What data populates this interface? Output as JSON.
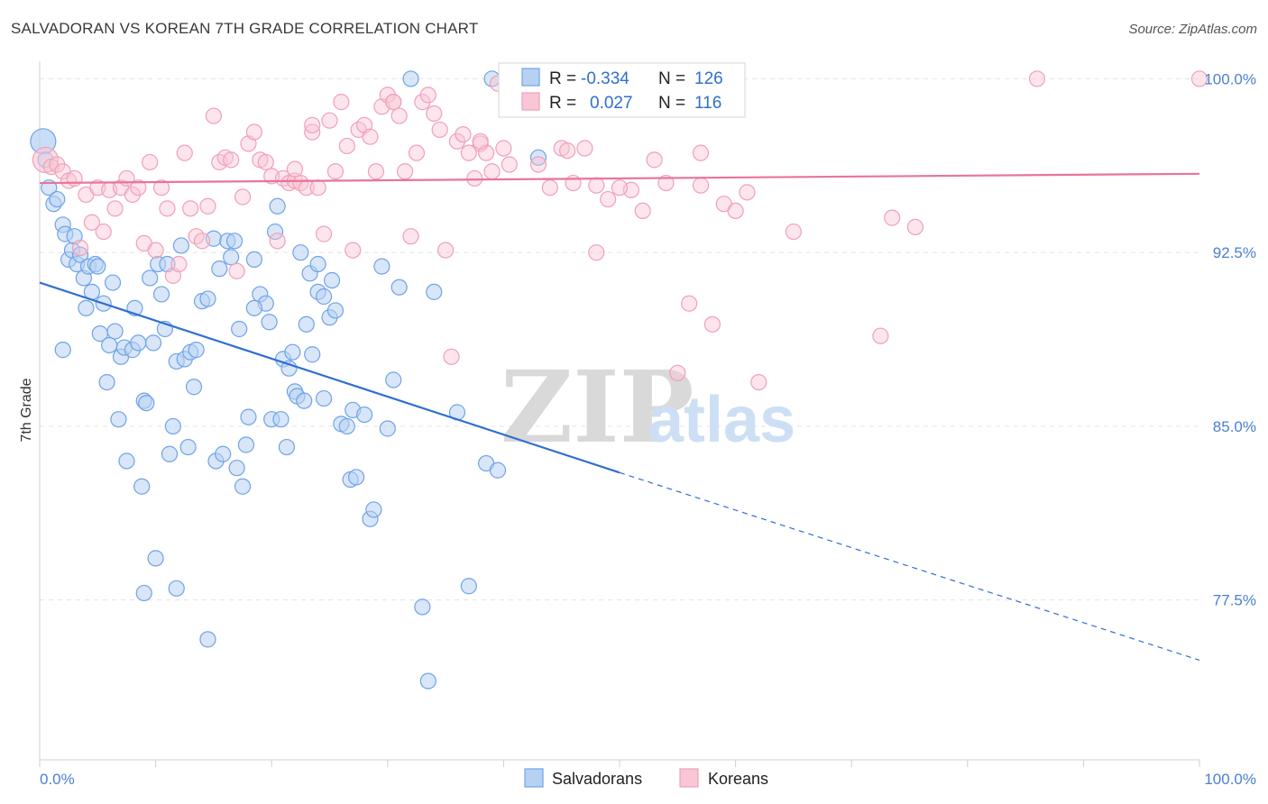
{
  "title": "SALVADORAN VS KOREAN 7TH GRADE CORRELATION CHART",
  "source": "Source: ZipAtlas.com",
  "watermark": {
    "zip": "ZIP",
    "atlas": "atlas"
  },
  "legend_top": {
    "rows": [
      {
        "r_label": "R =",
        "r_value": "-0.334",
        "n_label": "N =",
        "n_value": "126"
      },
      {
        "r_label": "R =",
        "r_value": "0.027",
        "n_label": "N =",
        "n_value": "116"
      }
    ]
  },
  "legend_bottom": [
    "Salvadorans",
    "Koreans"
  ],
  "colors": {
    "salvadorans": "#6fa3e8",
    "salvadorans_line": "#2f6fd0",
    "koreans": "#f0a0b8",
    "koreans_line": "#e8749a",
    "tick_text": "#4a7fd4"
  },
  "chart_data": {
    "type": "scatter",
    "title": "SALVADORAN VS KOREAN 7TH GRADE CORRELATION CHART",
    "xlabel": "",
    "ylabel": "7th Grade",
    "xlim": [
      0,
      100
    ],
    "ylim": [
      70.6,
      100.6
    ],
    "x_tick_labels": [
      "0.0%",
      "100.0%"
    ],
    "y_ticks": [
      77.5,
      85.0,
      92.5,
      100.0
    ],
    "y_tick_labels": [
      "77.5%",
      "85.0%",
      "92.5%",
      "100.0%"
    ],
    "grid": true,
    "legend_placement": "top-center",
    "series": [
      {
        "name": "Salvadorans",
        "r": -0.334,
        "n": 126,
        "trend": {
          "x0": 0,
          "y0": 91.2,
          "x1": 50,
          "y1": 83.0,
          "dashed_to_x": 100,
          "dashed_to_y": 74.9
        },
        "points": [
          [
            0.3,
            97.3
          ],
          [
            0.5,
            96.5
          ],
          [
            0.8,
            95.3
          ],
          [
            1.2,
            94.6
          ],
          [
            1.5,
            94.8
          ],
          [
            2.0,
            93.7
          ],
          [
            2.2,
            93.3
          ],
          [
            2.5,
            92.2
          ],
          [
            2.8,
            92.6
          ],
          [
            3.0,
            93.2
          ],
          [
            3.2,
            92.0
          ],
          [
            3.5,
            92.4
          ],
          [
            3.8,
            91.4
          ],
          [
            2.0,
            88.3
          ],
          [
            4.0,
            90.1
          ],
          [
            4.2,
            91.9
          ],
          [
            4.5,
            90.8
          ],
          [
            4.8,
            92.0
          ],
          [
            5.0,
            91.9
          ],
          [
            5.2,
            89.0
          ],
          [
            5.5,
            90.3
          ],
          [
            5.8,
            86.9
          ],
          [
            6.0,
            88.5
          ],
          [
            6.3,
            91.2
          ],
          [
            6.5,
            89.1
          ],
          [
            6.8,
            85.3
          ],
          [
            7.0,
            88.0
          ],
          [
            7.3,
            88.4
          ],
          [
            7.5,
            83.5
          ],
          [
            8.0,
            88.3
          ],
          [
            8.2,
            90.1
          ],
          [
            8.5,
            88.6
          ],
          [
            8.8,
            82.4
          ],
          [
            9.0,
            86.1
          ],
          [
            9.2,
            86.0
          ],
          [
            9.5,
            91.4
          ],
          [
            9.8,
            88.6
          ],
          [
            10.2,
            92.0
          ],
          [
            10.5,
            90.7
          ],
          [
            10.8,
            89.2
          ],
          [
            11.0,
            92.0
          ],
          [
            11.2,
            83.8
          ],
          [
            11.5,
            85.0
          ],
          [
            11.8,
            87.8
          ],
          [
            12.2,
            92.8
          ],
          [
            12.5,
            87.9
          ],
          [
            12.8,
            84.1
          ],
          [
            13.0,
            88.2
          ],
          [
            13.3,
            86.7
          ],
          [
            13.5,
            88.3
          ],
          [
            14.0,
            90.4
          ],
          [
            14.5,
            90.5
          ],
          [
            15.0,
            93.1
          ],
          [
            15.2,
            83.5
          ],
          [
            15.5,
            91.8
          ],
          [
            15.8,
            83.8
          ],
          [
            16.2,
            93.0
          ],
          [
            16.5,
            92.3
          ],
          [
            16.8,
            93.0
          ],
          [
            17.0,
            83.2
          ],
          [
            17.2,
            89.2
          ],
          [
            17.5,
            82.4
          ],
          [
            17.8,
            84.2
          ],
          [
            18.0,
            85.4
          ],
          [
            18.5,
            92.2
          ],
          [
            19.0,
            90.7
          ],
          [
            19.5,
            90.3
          ],
          [
            19.8,
            89.5
          ],
          [
            20.0,
            85.3
          ],
          [
            20.3,
            93.4
          ],
          [
            20.8,
            85.3
          ],
          [
            21.0,
            87.9
          ],
          [
            21.3,
            84.1
          ],
          [
            21.8,
            88.2
          ],
          [
            22.0,
            86.5
          ],
          [
            22.2,
            86.3
          ],
          [
            22.5,
            92.5
          ],
          [
            22.8,
            86.1
          ],
          [
            23.0,
            89.4
          ],
          [
            23.3,
            91.6
          ],
          [
            23.5,
            88.1
          ],
          [
            24.0,
            90.8
          ],
          [
            24.5,
            90.6
          ],
          [
            25.0,
            89.7
          ],
          [
            25.5,
            90.0
          ],
          [
            25.2,
            91.3
          ],
          [
            26.0,
            85.1
          ],
          [
            26.5,
            85.0
          ],
          [
            26.8,
            82.7
          ],
          [
            27.0,
            85.7
          ],
          [
            27.3,
            82.8
          ],
          [
            28.0,
            85.5
          ],
          [
            28.5,
            81.0
          ],
          [
            28.8,
            81.4
          ],
          [
            29.5,
            91.9
          ],
          [
            30.0,
            84.9
          ],
          [
            31.0,
            91.0
          ],
          [
            32.0,
            100.0
          ],
          [
            33.0,
            77.2
          ],
          [
            33.5,
            74.0
          ],
          [
            34.0,
            90.8
          ],
          [
            36.0,
            85.6
          ],
          [
            37.0,
            78.1
          ],
          [
            38.5,
            83.4
          ],
          [
            39.0,
            100.0
          ],
          [
            39.5,
            83.1
          ],
          [
            43.0,
            96.6
          ],
          [
            10.0,
            79.3
          ],
          [
            11.8,
            78.0
          ],
          [
            9.0,
            77.8
          ],
          [
            14.5,
            75.8
          ],
          [
            18.5,
            90.1
          ],
          [
            20.5,
            94.5
          ],
          [
            21.5,
            87.5
          ],
          [
            24.0,
            92.0
          ],
          [
            24.5,
            86.2
          ],
          [
            30.5,
            87.0
          ]
        ]
      },
      {
        "name": "Koreans",
        "r": 0.027,
        "n": 116,
        "trend": {
          "x0": 0,
          "y0": 95.5,
          "x1": 100,
          "y1": 95.9
        },
        "points": [
          [
            0.5,
            96.5
          ],
          [
            1.0,
            96.2
          ],
          [
            1.5,
            96.3
          ],
          [
            2.0,
            96.0
          ],
          [
            2.5,
            95.6
          ],
          [
            3.0,
            95.7
          ],
          [
            3.5,
            92.7
          ],
          [
            4.0,
            95.0
          ],
          [
            4.5,
            93.8
          ],
          [
            5.0,
            95.3
          ],
          [
            5.5,
            93.4
          ],
          [
            6.0,
            95.2
          ],
          [
            6.5,
            94.4
          ],
          [
            7.0,
            95.3
          ],
          [
            7.5,
            95.7
          ],
          [
            8.0,
            95.0
          ],
          [
            8.5,
            95.3
          ],
          [
            9.0,
            92.9
          ],
          [
            9.5,
            96.4
          ],
          [
            10.0,
            92.6
          ],
          [
            10.5,
            95.3
          ],
          [
            11.0,
            94.4
          ],
          [
            11.5,
            91.5
          ],
          [
            12.0,
            92.0
          ],
          [
            12.5,
            96.8
          ],
          [
            13.0,
            94.4
          ],
          [
            13.5,
            93.2
          ],
          [
            14.0,
            93.0
          ],
          [
            14.5,
            94.5
          ],
          [
            15.0,
            98.4
          ],
          [
            15.5,
            96.4
          ],
          [
            16.0,
            96.6
          ],
          [
            16.5,
            96.5
          ],
          [
            17.0,
            91.7
          ],
          [
            17.5,
            94.9
          ],
          [
            18.0,
            97.2
          ],
          [
            18.5,
            97.7
          ],
          [
            19.0,
            96.5
          ],
          [
            19.5,
            96.4
          ],
          [
            20.0,
            95.8
          ],
          [
            20.5,
            93.0
          ],
          [
            21.0,
            95.7
          ],
          [
            21.5,
            95.5
          ],
          [
            22.0,
            95.6
          ],
          [
            22.5,
            95.5
          ],
          [
            23.0,
            95.3
          ],
          [
            23.5,
            97.7
          ],
          [
            24.0,
            95.3
          ],
          [
            24.5,
            93.3
          ],
          [
            25.0,
            98.2
          ],
          [
            25.5,
            96.0
          ],
          [
            26.0,
            99.0
          ],
          [
            26.5,
            97.1
          ],
          [
            27.0,
            92.6
          ],
          [
            27.5,
            97.8
          ],
          [
            28.0,
            98.0
          ],
          [
            28.5,
            97.5
          ],
          [
            29.0,
            96.0
          ],
          [
            29.5,
            98.8
          ],
          [
            30.0,
            99.3
          ],
          [
            30.5,
            99.0
          ],
          [
            31.0,
            98.4
          ],
          [
            31.5,
            96.0
          ],
          [
            32.0,
            93.2
          ],
          [
            32.5,
            96.8
          ],
          [
            33.0,
            99.0
          ],
          [
            33.5,
            99.3
          ],
          [
            34.0,
            98.5
          ],
          [
            34.5,
            97.8
          ],
          [
            35.0,
            92.6
          ],
          [
            35.5,
            88.0
          ],
          [
            36.0,
            97.3
          ],
          [
            36.5,
            97.6
          ],
          [
            37.0,
            96.8
          ],
          [
            37.5,
            95.7
          ],
          [
            38.0,
            97.2
          ],
          [
            38.5,
            96.8
          ],
          [
            39.0,
            96.0
          ],
          [
            39.5,
            99.8
          ],
          [
            40.0,
            97.0
          ],
          [
            40.5,
            96.3
          ],
          [
            41.0,
            99.8
          ],
          [
            42.0,
            99.8
          ],
          [
            43.0,
            96.3
          ],
          [
            44.0,
            95.3
          ],
          [
            45.0,
            97.0
          ],
          [
            46.0,
            95.5
          ],
          [
            47.0,
            97.0
          ],
          [
            48.0,
            95.4
          ],
          [
            49.0,
            94.8
          ],
          [
            50.0,
            98.8
          ],
          [
            51.0,
            95.2
          ],
          [
            52.0,
            94.3
          ],
          [
            53.0,
            96.5
          ],
          [
            54.0,
            95.5
          ],
          [
            55.0,
            87.3
          ],
          [
            56.0,
            90.3
          ],
          [
            57.0,
            95.4
          ],
          [
            58.0,
            89.4
          ],
          [
            59.0,
            94.6
          ],
          [
            60.0,
            94.3
          ],
          [
            61.0,
            95.1
          ],
          [
            62.0,
            86.9
          ],
          [
            65.0,
            93.4
          ],
          [
            72.5,
            88.9
          ],
          [
            73.5,
            94.0
          ],
          [
            75.5,
            93.6
          ],
          [
            86.0,
            100.0
          ],
          [
            100.0,
            100.0
          ],
          [
            48.0,
            92.5
          ],
          [
            38.0,
            97.3
          ],
          [
            45.5,
            96.9
          ],
          [
            57.0,
            96.8
          ],
          [
            22.0,
            96.1
          ],
          [
            23.5,
            98.0
          ],
          [
            30.5,
            99.0
          ],
          [
            50.0,
            95.3
          ]
        ]
      }
    ]
  }
}
